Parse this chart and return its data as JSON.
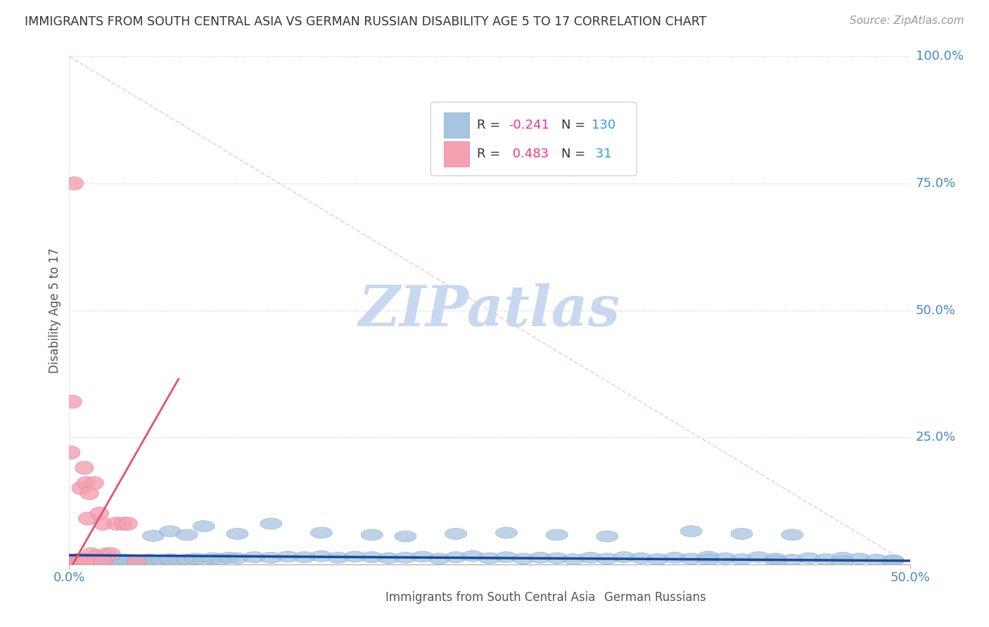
{
  "title": "IMMIGRANTS FROM SOUTH CENTRAL ASIA VS GERMAN RUSSIAN DISABILITY AGE 5 TO 17 CORRELATION CHART",
  "source": "Source: ZipAtlas.com",
  "ylabel_label": "Disability Age 5 to 17",
  "series1_name": "Immigrants from South Central Asia",
  "series2_name": "German Russians",
  "series1_R": -0.241,
  "series1_N": 130,
  "series2_R": 0.483,
  "series2_N": 31,
  "series1_color": "#a8c4e0",
  "series1_edge_color": "#88aad0",
  "series2_color": "#f4a0b0",
  "series2_edge_color": "#e080a0",
  "series1_line_color": "#1a4a9a",
  "series2_line_color": "#e8506a",
  "diag_line_color": "#e0c8d0",
  "bg_color": "#ffffff",
  "grid_color": "#c8c8d8",
  "watermark_color": "#c8d8f0",
  "title_color": "#333333",
  "axis_tick_color": "#4488cc",
  "ylabel_color": "#555555",
  "legend_text_color": "#333333",
  "legend_R_color": "#ee3388",
  "legend_N_color": "#3399ee",
  "legend_border_color": "#c0c8d8",
  "xmin": 0.0,
  "xmax": 0.5,
  "ymin": 0.0,
  "ymax": 1.0,
  "ytick_positions": [
    0.0,
    0.25,
    0.5,
    0.75,
    1.0
  ],
  "ytick_labels": [
    "",
    "25.0%",
    "50.0%",
    "75.0%",
    "100.0%"
  ],
  "blue_line_slope": -0.022,
  "blue_line_intercept": 0.018,
  "pink_line_x0": 0.0,
  "pink_line_x1": 0.065,
  "pink_line_slope": 5.8,
  "pink_line_intercept": -0.012,
  "s1_x": [
    0.001,
    0.002,
    0.002,
    0.003,
    0.003,
    0.004,
    0.004,
    0.005,
    0.005,
    0.005,
    0.006,
    0.006,
    0.007,
    0.007,
    0.008,
    0.008,
    0.009,
    0.009,
    0.01,
    0.01,
    0.011,
    0.012,
    0.013,
    0.014,
    0.015,
    0.016,
    0.017,
    0.018,
    0.019,
    0.02,
    0.022,
    0.024,
    0.025,
    0.027,
    0.03,
    0.032,
    0.035,
    0.038,
    0.04,
    0.043,
    0.045,
    0.048,
    0.05,
    0.055,
    0.06,
    0.065,
    0.07,
    0.075,
    0.08,
    0.085,
    0.09,
    0.095,
    0.1,
    0.11,
    0.12,
    0.13,
    0.14,
    0.15,
    0.16,
    0.17,
    0.18,
    0.19,
    0.2,
    0.21,
    0.22,
    0.23,
    0.24,
    0.25,
    0.26,
    0.27,
    0.28,
    0.29,
    0.3,
    0.31,
    0.32,
    0.33,
    0.34,
    0.35,
    0.36,
    0.37,
    0.38,
    0.39,
    0.4,
    0.41,
    0.42,
    0.43,
    0.44,
    0.45,
    0.46,
    0.47,
    0.48,
    0.49,
    0.003,
    0.004,
    0.005,
    0.006,
    0.007,
    0.008,
    0.009,
    0.01,
    0.011,
    0.012,
    0.013,
    0.014,
    0.015,
    0.02,
    0.025,
    0.03,
    0.035,
    0.04,
    0.05,
    0.06,
    0.07,
    0.08,
    0.1,
    0.12,
    0.15,
    0.18,
    0.2,
    0.23,
    0.26,
    0.29,
    0.32,
    0.37,
    0.4,
    0.43,
    0.46,
    0.49,
    0.42,
    0.38
  ],
  "s1_y": [
    0.005,
    0.006,
    0.008,
    0.005,
    0.007,
    0.005,
    0.008,
    0.004,
    0.007,
    0.01,
    0.005,
    0.008,
    0.004,
    0.009,
    0.005,
    0.007,
    0.004,
    0.008,
    0.005,
    0.009,
    0.006,
    0.004,
    0.007,
    0.005,
    0.008,
    0.004,
    0.007,
    0.005,
    0.009,
    0.006,
    0.004,
    0.008,
    0.005,
    0.007,
    0.004,
    0.009,
    0.006,
    0.008,
    0.005,
    0.007,
    0.004,
    0.009,
    0.006,
    0.008,
    0.01,
    0.007,
    0.009,
    0.011,
    0.008,
    0.012,
    0.01,
    0.013,
    0.012,
    0.014,
    0.013,
    0.015,
    0.014,
    0.016,
    0.013,
    0.015,
    0.014,
    0.012,
    0.013,
    0.015,
    0.011,
    0.014,
    0.016,
    0.012,
    0.014,
    0.011,
    0.013,
    0.012,
    0.01,
    0.013,
    0.011,
    0.014,
    0.012,
    0.01,
    0.013,
    0.011,
    0.015,
    0.012,
    0.01,
    0.014,
    0.011,
    0.009,
    0.012,
    0.01,
    0.013,
    0.011,
    0.009,
    0.007,
    0.006,
    0.008,
    0.007,
    0.009,
    0.006,
    0.008,
    0.007,
    0.009,
    0.007,
    0.006,
    0.005,
    0.007,
    0.006,
    0.005,
    0.006,
    0.007,
    0.005,
    0.008,
    0.056,
    0.065,
    0.058,
    0.075,
    0.06,
    0.08,
    0.062,
    0.058,
    0.055,
    0.06,
    0.062,
    0.058,
    0.055,
    0.065,
    0.06,
    0.058,
    0.006,
    0.008,
    0.007,
    0.009
  ],
  "s2_x": [
    0.001,
    0.002,
    0.003,
    0.004,
    0.005,
    0.005,
    0.006,
    0.007,
    0.008,
    0.009,
    0.01,
    0.011,
    0.012,
    0.013,
    0.015,
    0.016,
    0.018,
    0.02,
    0.022,
    0.025,
    0.028,
    0.032,
    0.035,
    0.04,
    0.003,
    0.004,
    0.006,
    0.008,
    0.01,
    0.015,
    0.02
  ],
  "s2_y": [
    0.22,
    0.32,
    0.005,
    0.007,
    0.005,
    0.008,
    0.005,
    0.15,
    0.01,
    0.19,
    0.16,
    0.09,
    0.14,
    0.02,
    0.16,
    0.015,
    0.1,
    0.08,
    0.02,
    0.02,
    0.08,
    0.08,
    0.08,
    0.005,
    0.75,
    0.005,
    0.005,
    0.005,
    0.005,
    0.005,
    0.005
  ]
}
